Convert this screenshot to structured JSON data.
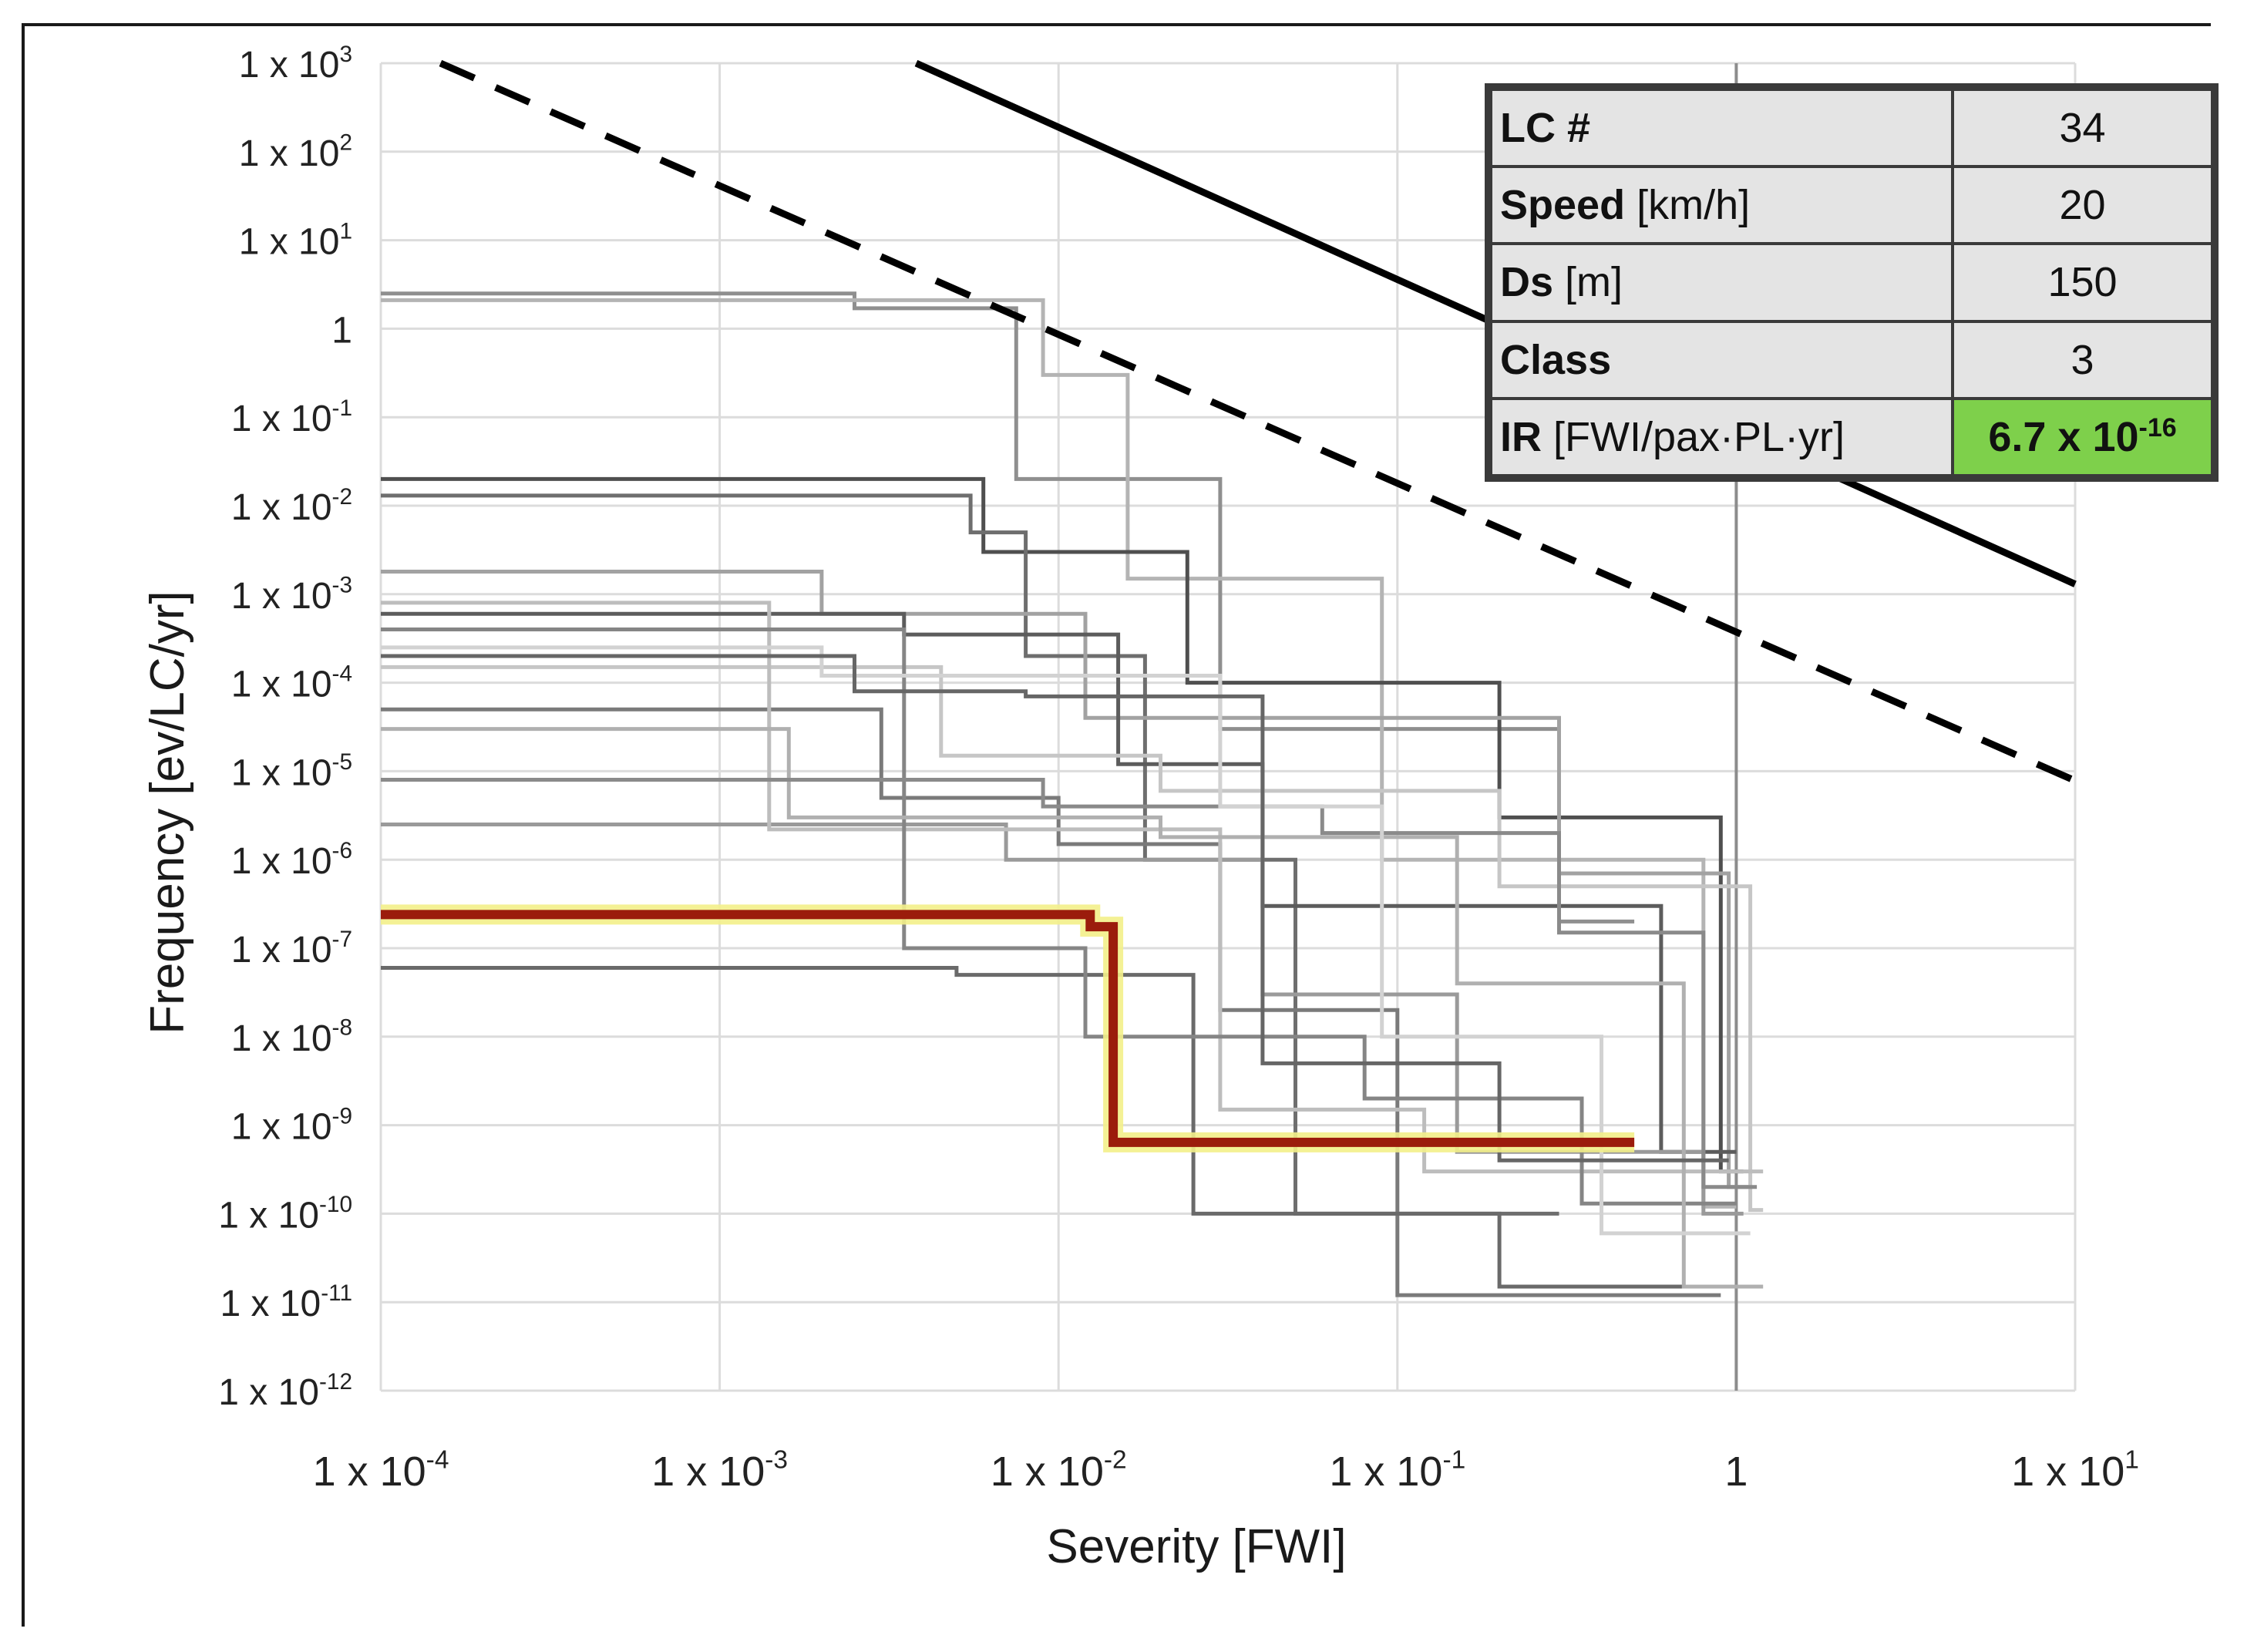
{
  "chart_data": {
    "type": "line",
    "scale": "log-log",
    "xlabel": "Severity [FWI]",
    "ylabel": "Frequency [ev/LC/yr]",
    "xlim": [
      0.0001,
      10
    ],
    "ylim": [
      1e-12,
      1000
    ],
    "x_ticks": [
      {
        "exp": -4,
        "mant": "1 x 10",
        "sup": "-4"
      },
      {
        "exp": -3,
        "mant": "1 x 10",
        "sup": "-3"
      },
      {
        "exp": -2,
        "mant": "1 x 10",
        "sup": "-2"
      },
      {
        "exp": -1,
        "mant": "1 x 10",
        "sup": "-1"
      },
      {
        "exp": 0,
        "mant": "1",
        "sup": ""
      },
      {
        "exp": 1,
        "mant": "1 x 10",
        "sup": "1"
      }
    ],
    "y_ticks": [
      {
        "exp": 3,
        "mant": "1 x 10",
        "sup": "3"
      },
      {
        "exp": 2,
        "mant": "1 x 10",
        "sup": "2"
      },
      {
        "exp": 1,
        "mant": "1 x 10",
        "sup": "1"
      },
      {
        "exp": 0,
        "mant": "1",
        "sup": ""
      },
      {
        "exp": -1,
        "mant": "1 x 10",
        "sup": "-1"
      },
      {
        "exp": -2,
        "mant": "1 x 10",
        "sup": "-2"
      },
      {
        "exp": -3,
        "mant": "1 x 10",
        "sup": "-3"
      },
      {
        "exp": -4,
        "mant": "1 x 10",
        "sup": "-4"
      },
      {
        "exp": -5,
        "mant": "1 x 10",
        "sup": "-5"
      },
      {
        "exp": -6,
        "mant": "1 x 10",
        "sup": "-6"
      },
      {
        "exp": -7,
        "mant": "1 x 10",
        "sup": "-7"
      },
      {
        "exp": -8,
        "mant": "1 x 10",
        "sup": "-8"
      },
      {
        "exp": -9,
        "mant": "1 x 10",
        "sup": "-9"
      },
      {
        "exp": -10,
        "mant": "1 x 10",
        "sup": "-10"
      },
      {
        "exp": -11,
        "mant": "1 x 10",
        "sup": "-11"
      },
      {
        "exp": -12,
        "mant": "1 x 10",
        "sup": "-12"
      }
    ],
    "criteria_lines": [
      {
        "name": "upper-limit",
        "style": "solid",
        "color": "#000000",
        "points": [
          [
            0.0038,
            1000
          ],
          [
            10,
            0.0013
          ]
        ]
      },
      {
        "name": "lower-limit",
        "style": "dashed",
        "color": "#000000",
        "points": [
          [
            0.00015,
            1000
          ],
          [
            10,
            7.8e-06
          ]
        ]
      }
    ],
    "highlighted_series": {
      "name": "LC 34",
      "color": "#9b1c0c",
      "glow": "#f3f08a",
      "steps": [
        [
          0.0001,
          2.4e-07
        ],
        [
          0.0124,
          2.4e-07
        ],
        [
          0.0124,
          1.75e-07
        ],
        [
          0.0145,
          1.75e-07
        ],
        [
          0.0145,
          6.4e-10
        ],
        [
          0.5,
          6.4e-10
        ]
      ]
    },
    "background_series": [
      {
        "color": "#8f8f8f",
        "steps": [
          [
            0.0001,
            2.5
          ],
          [
            0.0025,
            2.5
          ],
          [
            0.0025,
            1.7
          ],
          [
            0.0075,
            1.7
          ],
          [
            0.0075,
            0.02
          ],
          [
            0.03,
            0.02
          ],
          [
            0.03,
            3e-05
          ],
          [
            0.3,
            3e-05
          ],
          [
            0.3,
            2e-07
          ],
          [
            0.5,
            2e-07
          ]
        ]
      },
      {
        "color": "#b4b4b4",
        "steps": [
          [
            0.0001,
            2.1
          ],
          [
            0.009,
            2.1
          ],
          [
            0.009,
            0.3
          ],
          [
            0.016,
            0.3
          ],
          [
            0.016,
            0.0015
          ],
          [
            0.09,
            0.0015
          ],
          [
            0.09,
            1e-06
          ],
          [
            0.8,
            1e-06
          ],
          [
            0.8,
            1.2e-10
          ],
          [
            1.0,
            1.2e-10
          ]
        ]
      },
      {
        "color": "#4f4f4f",
        "steps": [
          [
            0.0001,
            0.02
          ],
          [
            0.006,
            0.02
          ],
          [
            0.006,
            0.003
          ],
          [
            0.024,
            0.003
          ],
          [
            0.024,
            0.0001
          ],
          [
            0.2,
            0.0001
          ],
          [
            0.2,
            3e-06
          ],
          [
            0.9,
            3e-06
          ],
          [
            0.9,
            3e-10
          ],
          [
            1.05,
            3e-10
          ]
        ]
      },
      {
        "color": "#6e6e6e",
        "steps": [
          [
            0.0001,
            0.013
          ],
          [
            0.0055,
            0.013
          ],
          [
            0.0055,
            0.005
          ],
          [
            0.008,
            0.005
          ],
          [
            0.008,
            0.0002
          ],
          [
            0.018,
            0.0002
          ],
          [
            0.018,
            1e-06
          ],
          [
            0.05,
            1e-06
          ],
          [
            0.05,
            1e-10
          ],
          [
            0.3,
            1e-10
          ]
        ]
      },
      {
        "color": "#a2a2a2",
        "steps": [
          [
            0.0001,
            0.0018
          ],
          [
            0.002,
            0.0018
          ],
          [
            0.002,
            0.0006
          ],
          [
            0.012,
            0.0006
          ],
          [
            0.012,
            4e-05
          ],
          [
            0.3,
            4e-05
          ],
          [
            0.3,
            7e-07
          ],
          [
            0.95,
            7e-07
          ],
          [
            0.95,
            2e-10
          ],
          [
            1.1,
            2e-10
          ]
        ]
      },
      {
        "color": "#5c5c5c",
        "steps": [
          [
            0.0001,
            0.0006
          ],
          [
            0.0035,
            0.0006
          ],
          [
            0.0035,
            0.00035
          ],
          [
            0.015,
            0.00035
          ],
          [
            0.015,
            1.2e-05
          ],
          [
            0.04,
            1.2e-05
          ],
          [
            0.04,
            3e-07
          ],
          [
            0.6,
            3e-07
          ],
          [
            0.6,
            5e-10
          ],
          [
            1.0,
            5e-10
          ]
        ]
      },
      {
        "color": "#c6c6c6",
        "steps": [
          [
            0.0001,
            0.00015
          ],
          [
            0.0045,
            0.00015
          ],
          [
            0.0045,
            1.5e-05
          ],
          [
            0.02,
            1.5e-05
          ],
          [
            0.02,
            6e-06
          ],
          [
            0.2,
            6e-06
          ],
          [
            0.2,
            5e-07
          ],
          [
            1.1,
            5e-07
          ],
          [
            1.1,
            1.1e-10
          ],
          [
            1.2,
            1.1e-10
          ]
        ]
      },
      {
        "color": "#7a7a7a",
        "steps": [
          [
            0.0001,
            5e-05
          ],
          [
            0.003,
            5e-05
          ],
          [
            0.003,
            5e-06
          ],
          [
            0.01,
            5e-06
          ],
          [
            0.01,
            1.5e-06
          ],
          [
            0.03,
            1.5e-06
          ],
          [
            0.03,
            2e-08
          ],
          [
            0.1,
            2e-08
          ],
          [
            0.1,
            1.2e-11
          ],
          [
            0.9,
            1.2e-11
          ]
        ]
      },
      {
        "color": "#9a9a9a",
        "steps": [
          [
            0.0001,
            2.5e-06
          ],
          [
            0.007,
            2.5e-06
          ],
          [
            0.007,
            1e-06
          ],
          [
            0.04,
            1e-06
          ],
          [
            0.04,
            3e-08
          ],
          [
            0.15,
            3e-08
          ],
          [
            0.15,
            5e-10
          ],
          [
            0.8,
            5e-10
          ],
          [
            0.8,
            1e-10
          ],
          [
            1.05,
            1e-10
          ]
        ]
      },
      {
        "color": "#6a6a6a",
        "steps": [
          [
            0.0001,
            6e-08
          ],
          [
            0.005,
            6e-08
          ],
          [
            0.005,
            5e-08
          ],
          [
            0.025,
            5e-08
          ],
          [
            0.025,
            1e-10
          ],
          [
            0.2,
            1e-10
          ],
          [
            0.2,
            1.5e-11
          ],
          [
            1.0,
            1.5e-11
          ]
        ]
      },
      {
        "color": "#bdbdbd",
        "steps": [
          [
            0.0001,
            0.0008
          ],
          [
            0.0014,
            0.0008
          ],
          [
            0.0014,
            2.2e-06
          ],
          [
            0.03,
            2.2e-06
          ],
          [
            0.03,
            1.5e-09
          ],
          [
            0.12,
            1.5e-09
          ],
          [
            0.12,
            3e-10
          ],
          [
            1.2,
            3e-10
          ]
        ]
      },
      {
        "color": "#858585",
        "steps": [
          [
            0.0001,
            0.0004
          ],
          [
            0.0035,
            0.0004
          ],
          [
            0.0035,
            1e-07
          ],
          [
            0.012,
            1e-07
          ],
          [
            0.012,
            1e-08
          ],
          [
            0.08,
            1e-08
          ],
          [
            0.08,
            2e-09
          ],
          [
            0.35,
            2e-09
          ],
          [
            0.35,
            1.3e-10
          ],
          [
            1.0,
            1.3e-10
          ]
        ]
      },
      {
        "color": "#b0b0b0",
        "steps": [
          [
            0.0001,
            3e-05
          ],
          [
            0.0016,
            3e-05
          ],
          [
            0.0016,
            3e-06
          ],
          [
            0.02,
            3e-06
          ],
          [
            0.02,
            1.8e-06
          ],
          [
            0.15,
            1.8e-06
          ],
          [
            0.15,
            4e-08
          ],
          [
            0.7,
            4e-08
          ],
          [
            0.7,
            1.5e-11
          ],
          [
            1.2,
            1.5e-11
          ]
        ]
      },
      {
        "color": "#8a8a8a",
        "steps": [
          [
            0.0001,
            8e-06
          ],
          [
            0.009,
            8e-06
          ],
          [
            0.009,
            4e-06
          ],
          [
            0.06,
            4e-06
          ],
          [
            0.06,
            2e-06
          ],
          [
            0.3,
            2e-06
          ],
          [
            0.3,
            1.5e-07
          ],
          [
            0.8,
            1.5e-07
          ],
          [
            0.8,
            2e-10
          ],
          [
            1.15,
            2e-10
          ]
        ]
      },
      {
        "color": "#d2d2d2",
        "steps": [
          [
            0.0001,
            0.00025
          ],
          [
            0.002,
            0.00025
          ],
          [
            0.002,
            0.00012
          ],
          [
            0.03,
            0.00012
          ],
          [
            0.03,
            4e-06
          ],
          [
            0.09,
            4e-06
          ],
          [
            0.09,
            1e-08
          ],
          [
            0.4,
            1e-08
          ],
          [
            0.4,
            6e-11
          ],
          [
            1.1,
            6e-11
          ]
        ]
      },
      {
        "color": "#666666",
        "steps": [
          [
            0.0001,
            0.0002
          ],
          [
            0.0025,
            0.0002
          ],
          [
            0.0025,
            8e-05
          ],
          [
            0.008,
            8e-05
          ],
          [
            0.008,
            7e-05
          ],
          [
            0.04,
            7e-05
          ],
          [
            0.04,
            5e-09
          ],
          [
            0.2,
            5e-09
          ],
          [
            0.2,
            4e-10
          ],
          [
            0.95,
            4e-10
          ]
        ]
      }
    ]
  },
  "info_table": {
    "lc": {
      "label": "LC #",
      "value": "34"
    },
    "speed": {
      "label": "Speed",
      "unit": "[km/h]",
      "value": "20"
    },
    "ds": {
      "label": "Ds",
      "unit": "[m]",
      "value": "150"
    },
    "class": {
      "label": "Class",
      "value": "3"
    },
    "ir": {
      "label": "IR",
      "unit": "[FWI/pax·PL·yr]",
      "value_mantissa": "6.7 x 10",
      "value_exp": "-16",
      "highlight": "#7ed04b"
    }
  }
}
